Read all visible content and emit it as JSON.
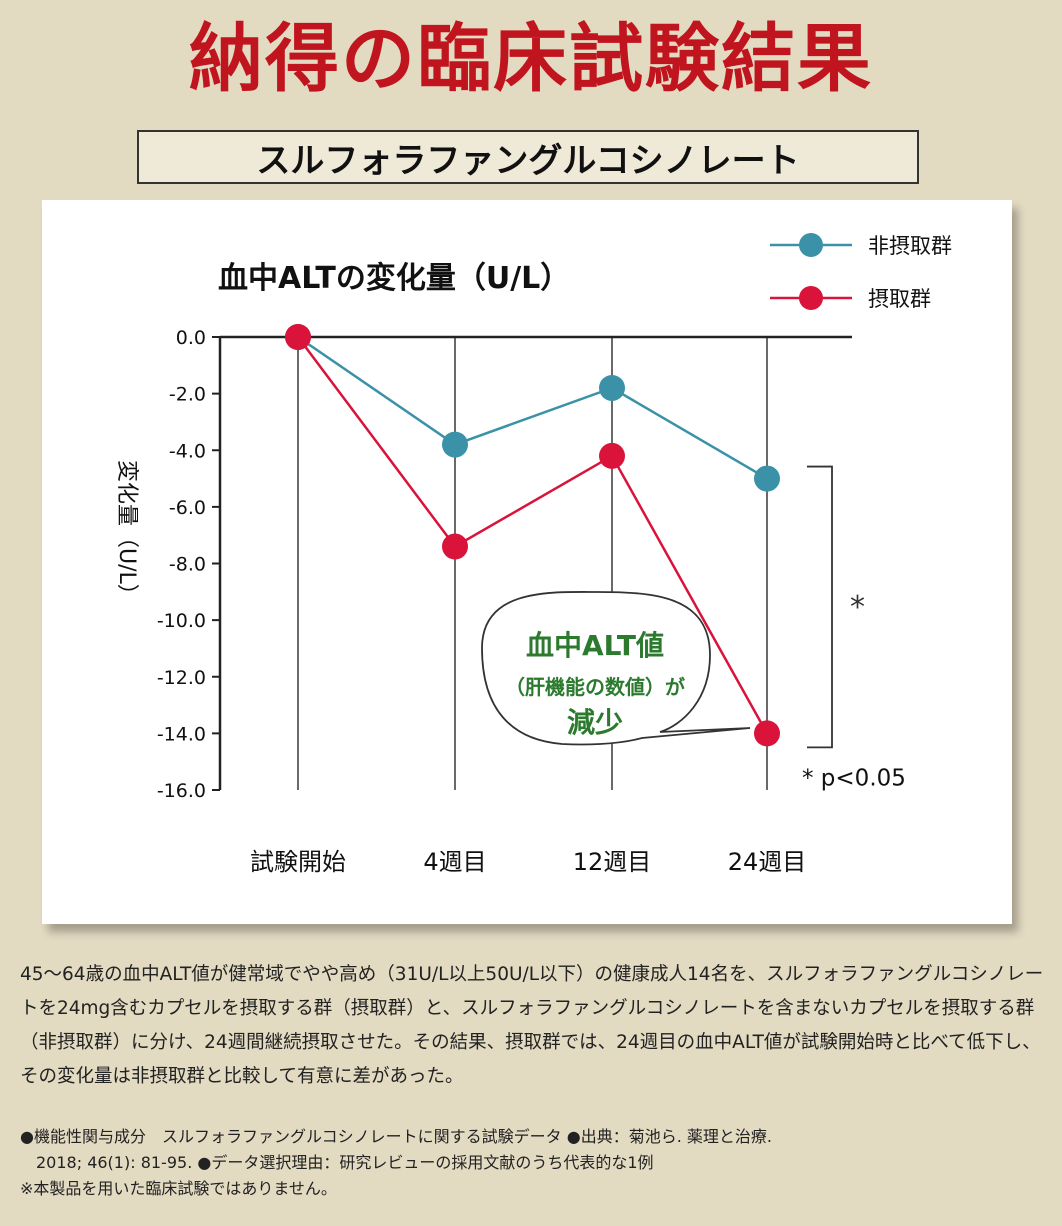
{
  "title": "納得の臨床試験結果",
  "subtitle": "スルフォラファングルコシノレート",
  "colors": {
    "title": "#c0141e",
    "non_intake": "#3a91a8",
    "intake": "#d9133a",
    "callout_text": "#2b7a2e"
  },
  "chart_data": {
    "type": "line",
    "title": "血中ALTの変化量（U/L）",
    "xlabel": "",
    "ylabel": "変化量（U/L）",
    "categories": [
      "試験開始",
      "4週目",
      "12週目",
      "24週目"
    ],
    "ylim": [
      -16.0,
      0.0
    ],
    "yticks": [
      "0.0",
      "-2.0",
      "-4.0",
      "-6.0",
      "-8.0",
      "-10.0",
      "-12.0",
      "-14.0",
      "-16.0"
    ],
    "series": [
      {
        "name": "非摂取群",
        "values": [
          0.0,
          -3.8,
          -1.8,
          -5.0
        ]
      },
      {
        "name": "摂取群",
        "values": [
          0.0,
          -7.4,
          -4.2,
          -14.0
        ]
      }
    ],
    "legend_position": "top-right",
    "grid": "vertical lines at each category",
    "significance_mark": "*",
    "significance_note": "* p<0.05",
    "callout": [
      "血中ALT値",
      "（肝機能の数値）が",
      "減少"
    ]
  },
  "description": "45～64歳の血中ALT値が健常域でやや高め（31U/L以上50U/L以下）の健康成人14名を、スルフォラファングルコシノレートを24mg含むカプセルを摂取する群（摂取群）と、スルフォラファングルコシノレートを含まないカプセルを摂取する群（非摂取群）に分け、24週間継続摂取させた。その結果、摂取群では、24週目の血中ALT値が試験開始時と比べて低下し、その変化量は非摂取群と比較して有意に差があった。",
  "notes": [
    "●機能性関与成分　スルフォラファングルコシノレートに関する試験データ ●出典：菊池ら. 薬理と治療.",
    "　2018; 46(1): 81-95. ●データ選択理由：研究レビューの採用文献のうち代表的な1例",
    "※本製品を用いた臨床試験ではありません。"
  ]
}
